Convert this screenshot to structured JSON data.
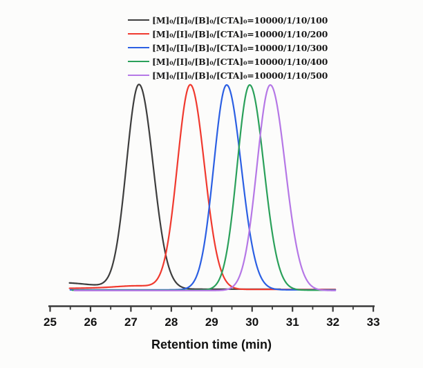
{
  "figure": {
    "background": "#fcfcfb",
    "axis_color": "#3a3a3a",
    "text_color": "#111111"
  },
  "chart_data": {
    "type": "line",
    "title": "",
    "xlabel": "Retention time (min)",
    "ylabel": "",
    "x_axis": {
      "min": 25,
      "max": 33,
      "major_ticks": [
        25,
        26,
        27,
        28,
        29,
        30,
        31,
        32,
        33
      ],
      "tick_labels": [
        "25",
        "26",
        "27",
        "28",
        "29",
        "30",
        "31",
        "32",
        "33"
      ],
      "minor_tick_step": 0.5
    },
    "y_axis": {
      "visible": false,
      "note": "unlabeled normalized detector response; no y-axis drawn"
    },
    "legend_position": "top-center",
    "grid": false,
    "series": [
      {
        "name": "[M]₀/[I]₀/[B]₀/[CTA]₀=10000/1/10/100",
        "color": "#3d3d3d",
        "peak_retention_min": 27.2,
        "normalized_peak_height": 1.0,
        "sigma_left_min": 0.31,
        "sigma_right_min": 0.35,
        "x_start": 25.48,
        "x_end": 30.7,
        "extras": [
          {
            "center": 25.2,
            "sigma": 0.9,
            "amp": 0.032
          }
        ]
      },
      {
        "name": "[M]₀/[I]₀/[B]₀/[CTA]₀=10000/1/10/200",
        "color": "#f0392e",
        "peak_retention_min": 28.47,
        "normalized_peak_height": 1.0,
        "sigma_left_min": 0.32,
        "sigma_right_min": 0.35,
        "x_start": 25.48,
        "x_end": 32.06,
        "extras": [
          {
            "center": 27.2,
            "sigma": 0.55,
            "amp": 0.015
          },
          {
            "center": 25.9,
            "sigma": 1.0,
            "amp": 0.006
          }
        ]
      },
      {
        "name": "[M]₀/[I]₀/[B]₀/[CTA]₀=10000/1/10/300",
        "color": "#2b5fe3",
        "peak_retention_min": 29.37,
        "normalized_peak_height": 1.0,
        "sigma_left_min": 0.32,
        "sigma_right_min": 0.36,
        "x_start": 25.5,
        "x_end": 32.06,
        "extras": []
      },
      {
        "name": "[M]₀/[I]₀/[B]₀/[CTA]₀=10000/1/10/400",
        "color": "#2aa05a",
        "peak_retention_min": 29.94,
        "normalized_peak_height": 1.0,
        "sigma_left_min": 0.31,
        "sigma_right_min": 0.35,
        "x_start": 25.55,
        "x_end": 32.06,
        "extras": []
      },
      {
        "name": "[M]₀/[I]₀/[B]₀/[CTA]₀=10000/1/10/500",
        "color": "#b577e6",
        "peak_retention_min": 30.45,
        "normalized_peak_height": 1.0,
        "sigma_left_min": 0.33,
        "sigma_right_min": 0.37,
        "x_start": 25.6,
        "x_end": 32.06,
        "extras": []
      }
    ]
  }
}
